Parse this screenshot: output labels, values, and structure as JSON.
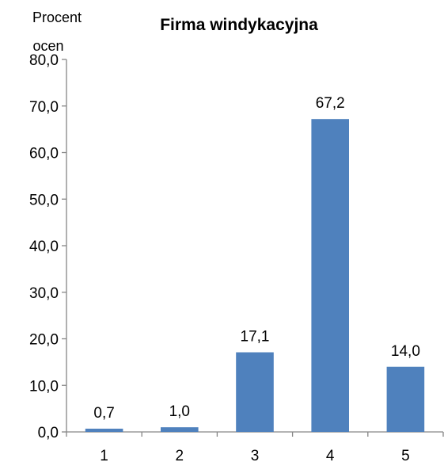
{
  "chart_data": {
    "type": "bar",
    "title": "Firma windykacyjna",
    "ylabel_lines": [
      "Procent",
      "ocen"
    ],
    "xlabel": "",
    "categories": [
      "1",
      "2",
      "3",
      "4",
      "5"
    ],
    "values": [
      0.7,
      1.0,
      17.1,
      67.2,
      14.0
    ],
    "value_labels": [
      "0,7",
      "1,0",
      "17,1",
      "67,2",
      "14,0"
    ],
    "ylim": [
      0,
      80
    ],
    "y_ticks": [
      0,
      10,
      20,
      30,
      40,
      50,
      60,
      70,
      80
    ],
    "y_tick_labels": [
      "0,0",
      "10,0",
      "20,0",
      "30,0",
      "40,0",
      "50,0",
      "60,0",
      "70,0",
      "80,0"
    ],
    "grid": false,
    "legend": "none",
    "bar_color": "#4F81BD"
  }
}
